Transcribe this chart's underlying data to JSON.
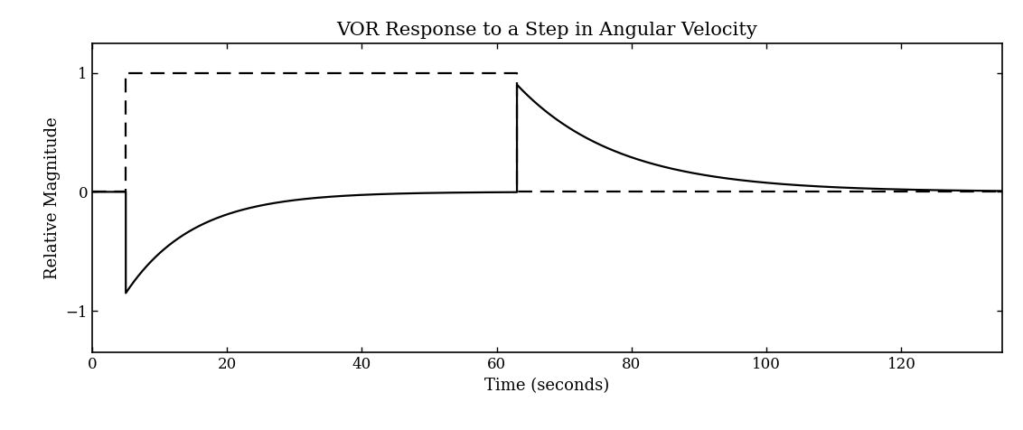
{
  "title": "VOR Response to a Step in Angular Velocity",
  "xlabel": "Time (seconds)",
  "ylabel": "Relative Magnitude",
  "xlim": [
    0,
    135
  ],
  "ylim": [
    -1.35,
    1.25
  ],
  "yticks": [
    -1,
    0,
    1
  ],
  "xticks": [
    0,
    20,
    40,
    60,
    80,
    100,
    120
  ],
  "step_start": 5,
  "step_end": 63,
  "step_amplitude": 1.0,
  "vor_drop": -0.85,
  "vor_jump": 0.9,
  "tau1": 10.0,
  "tau2": 15.0,
  "line_color": "#000000",
  "dashed_color": "#000000",
  "background_color": "#ffffff",
  "title_fontsize": 15,
  "label_fontsize": 13
}
